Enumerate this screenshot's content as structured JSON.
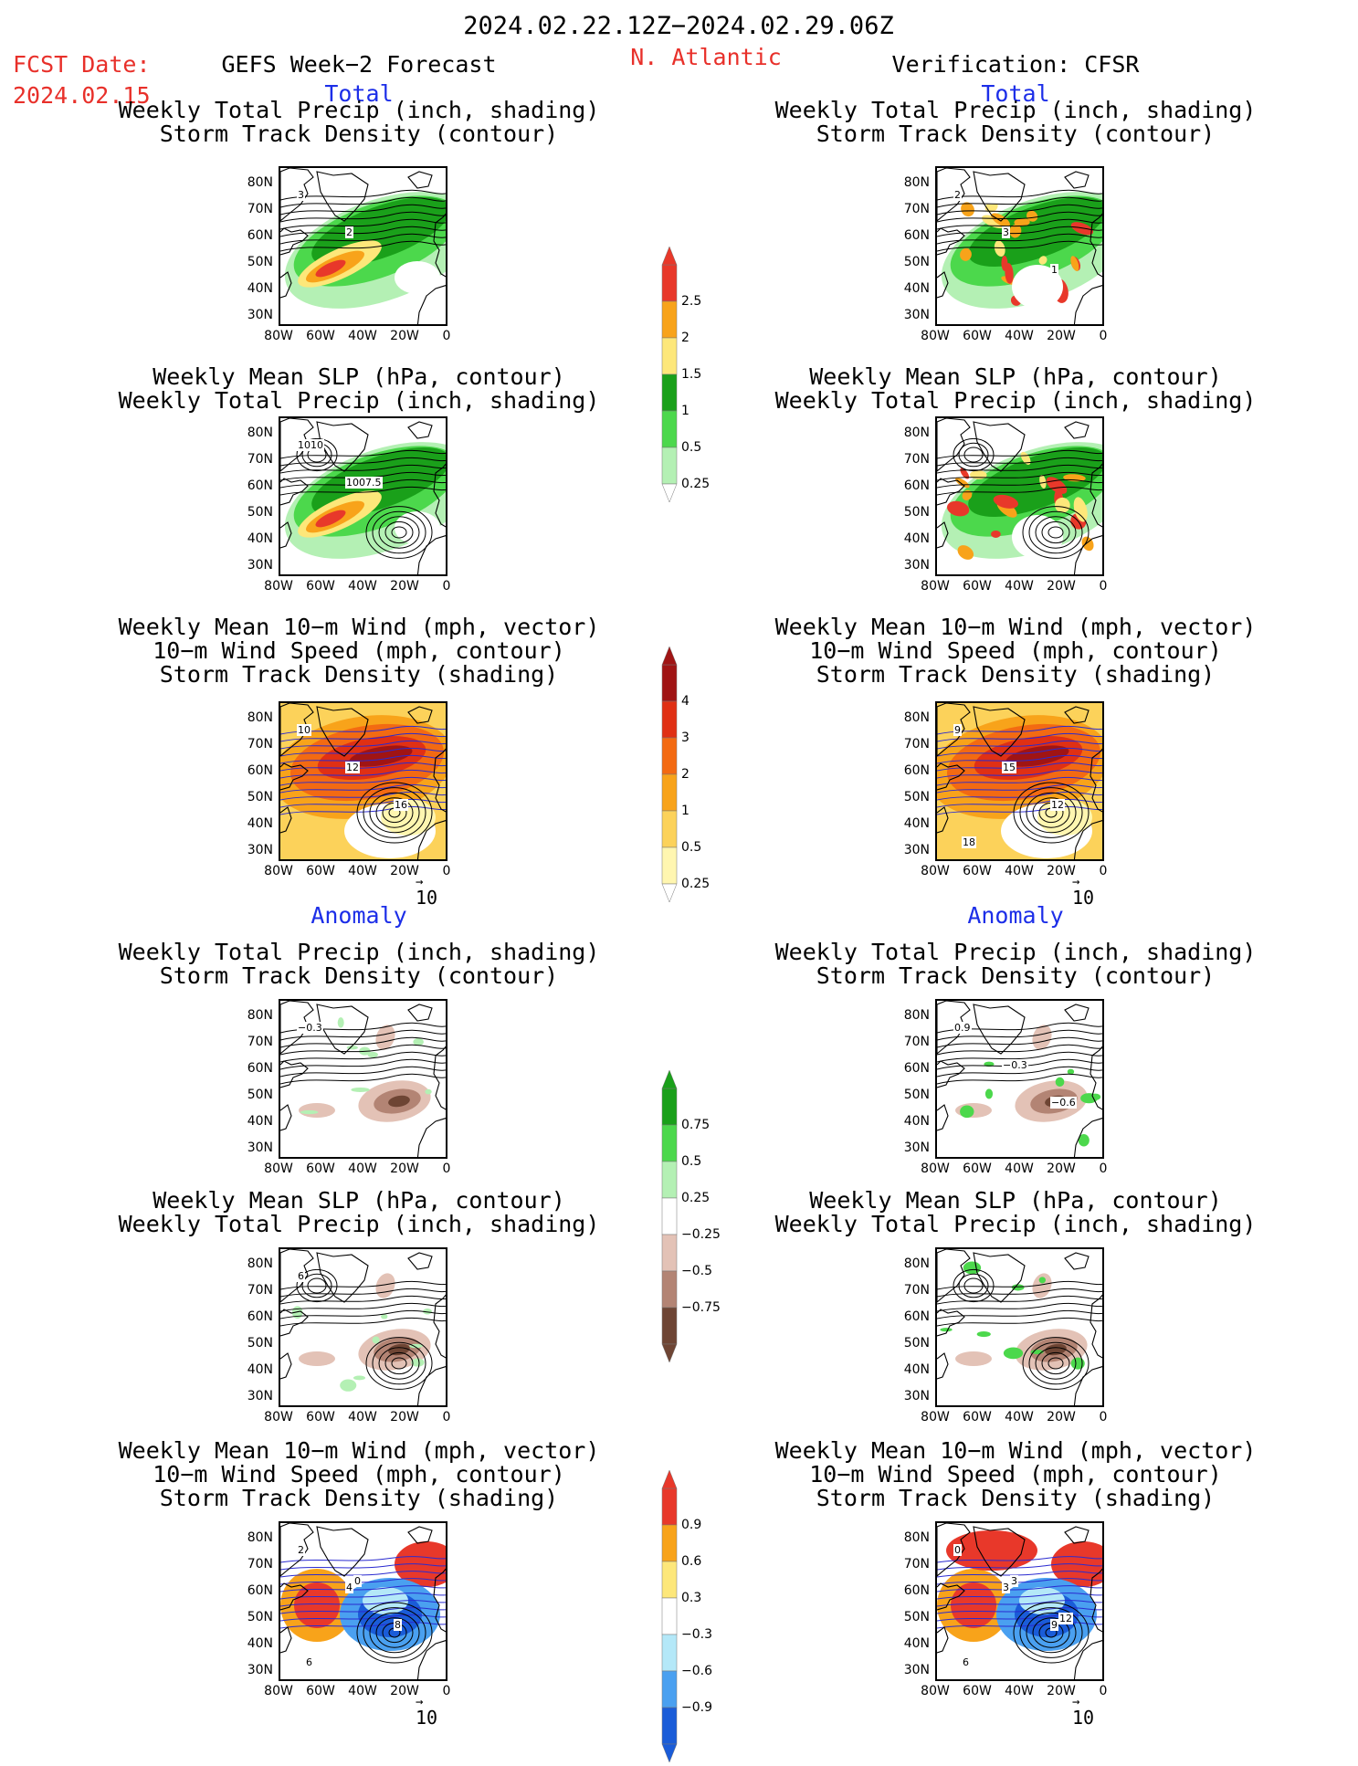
{
  "header": {
    "date_range": "2024.02.22.12Z−2024.02.29.06Z",
    "fcst_label": "FCST Date:",
    "fcst_date": "2024.02.15",
    "left_title": "GEFS Week−2 Forecast",
    "region": "N. Atlantic",
    "right_title": "Verification: CFSR"
  },
  "sections": {
    "total": "Total",
    "anomaly": "Anomaly"
  },
  "panel_titles": {
    "precip_track": [
      "Weekly Total Precip (inch, shading)",
      "Storm Track Density (contour)"
    ],
    "slp_precip": [
      "Weekly Mean SLP (hPa, contour)",
      "Weekly Total Precip (inch, shading)"
    ],
    "wind": [
      "Weekly Mean 10−m Wind (mph, vector)",
      "10−m Wind Speed (mph, contour)",
      "Storm Track Density (shading)"
    ]
  },
  "axes": {
    "lat_ticks": [
      "80N",
      "70N",
      "60N",
      "50N",
      "40N",
      "30N"
    ],
    "lon_ticks": [
      "80W",
      "60W",
      "40W",
      "20W",
      "0"
    ]
  },
  "vector_ref": "10",
  "colorbars": {
    "precip_total": {
      "ticks": [
        "2.5",
        "2",
        "1.5",
        "1",
        "0.5",
        "0.25"
      ],
      "colors": [
        "#e8382a",
        "#f8a31a",
        "#fde77a",
        "#1aa01a",
        "#4cd84c",
        "#b4f0b4"
      ]
    },
    "track_total": {
      "ticks": [
        "4",
        "3",
        "2",
        "1",
        "0.5",
        "0.25"
      ],
      "colors": [
        "#a01414",
        "#e03014",
        "#f36a12",
        "#f8a31a",
        "#fcd25a",
        "#fff6b0"
      ]
    },
    "precip_anom": {
      "ticks": [
        "0.75",
        "0.5",
        "0.25",
        "−0.25",
        "−0.5",
        "−0.75"
      ],
      "colors": [
        "#1aa01a",
        "#4cd84c",
        "#b4f0b4",
        "#ffffff",
        "#e3c2b6",
        "#b38474",
        "#6e4534"
      ]
    },
    "track_anom": {
      "ticks": [
        "0.9",
        "0.6",
        "0.3",
        "−0.3",
        "−0.6",
        "−0.9"
      ],
      "colors": [
        "#e8382a",
        "#f8a31a",
        "#fde77a",
        "#ffffff",
        "#b4e8f8",
        "#4aa0f0",
        "#1a5cd8"
      ]
    }
  },
  "contour_labels": {
    "l1": [
      "3",
      "2"
    ],
    "r1": [
      "2",
      "3",
      "1"
    ],
    "l2": [
      "1010",
      "1007.5"
    ],
    "l3": [
      "10",
      "12",
      "16"
    ],
    "r3": [
      "9",
      "15",
      "12",
      "18"
    ],
    "l4": [
      "−0.3"
    ],
    "r4": [
      "0.9",
      "−0.3",
      "−0.6"
    ],
    "l5": [
      "6"
    ],
    "l6": [
      "2",
      "4",
      "8",
      "6",
      "0"
    ],
    "r6": [
      "0",
      "3",
      "9",
      "6",
      "3",
      "12"
    ]
  },
  "chart_data": {
    "type": "heatmap",
    "region": "N. Atlantic",
    "lat_range": [
      "30N",
      "80N"
    ],
    "lon_range": [
      "80W",
      "0"
    ],
    "panels": [
      {
        "column": "GEFS Week−2 Forecast",
        "section": "Total",
        "fields": [
          "precip",
          "storm track density"
        ]
      },
      {
        "column": "GEFS Week−2 Forecast",
        "section": "Total",
        "fields": [
          "SLP",
          "precip"
        ]
      },
      {
        "column": "GEFS Week−2 Forecast",
        "section": "Total",
        "fields": [
          "10-m wind",
          "wind speed",
          "storm track density"
        ]
      },
      {
        "column": "GEFS Week−2 Forecast",
        "section": "Anomaly",
        "fields": [
          "precip",
          "storm track density"
        ]
      },
      {
        "column": "GEFS Week−2 Forecast",
        "section": "Anomaly",
        "fields": [
          "SLP",
          "precip"
        ]
      },
      {
        "column": "GEFS Week−2 Forecast",
        "section": "Anomaly",
        "fields": [
          "10-m wind",
          "wind speed",
          "storm track density"
        ]
      },
      {
        "column": "Verification: CFSR",
        "section": "Total",
        "fields": [
          "precip",
          "storm track density"
        ]
      },
      {
        "column": "Verification: CFSR",
        "section": "Total",
        "fields": [
          "SLP",
          "precip"
        ]
      },
      {
        "column": "Verification: CFSR",
        "section": "Total",
        "fields": [
          "10-m wind",
          "wind speed",
          "storm track density"
        ]
      },
      {
        "column": "Verification: CFSR",
        "section": "Anomaly",
        "fields": [
          "precip",
          "storm track density"
        ]
      },
      {
        "column": "Verification: CFSR",
        "section": "Anomaly",
        "fields": [
          "SLP",
          "precip"
        ]
      },
      {
        "column": "Verification: CFSR",
        "section": "Anomaly",
        "fields": [
          "10-m wind",
          "wind speed",
          "storm track density"
        ]
      }
    ]
  }
}
